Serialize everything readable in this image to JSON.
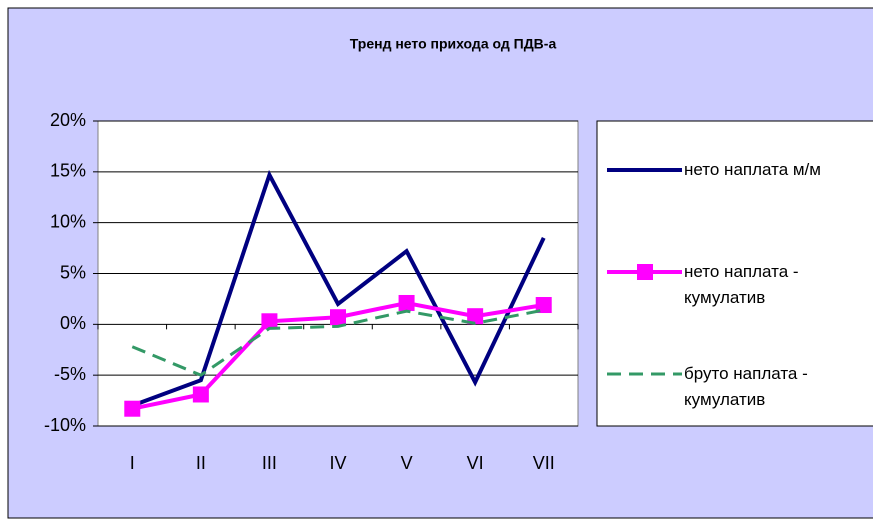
{
  "chart_data": {
    "type": "line",
    "title": "Тренд нето прихода од ПДВ-а",
    "categories": [
      "I",
      "II",
      "III",
      "IV",
      "V",
      "VI",
      "VII"
    ],
    "series": [
      {
        "name": "нето наплата м/м",
        "color": "#000080",
        "values": [
          -8,
          -5.5,
          14.7,
          2,
          7.2,
          -5.7,
          8.5
        ]
      },
      {
        "name": "нето наплата - кумулатив",
        "color": "#ff00ff",
        "marker": "square",
        "values": [
          -8.3,
          -6.9,
          0.3,
          0.7,
          2.1,
          0.8,
          1.9
        ]
      },
      {
        "name": "бруто наплата - кумулатив",
        "color": "#339966",
        "dash": true,
        "values": [
          -2.2,
          -5,
          -0.4,
          -0.2,
          1.3,
          0.1,
          1.4
        ]
      }
    ],
    "ylim": [
      -10,
      20
    ],
    "yticks": [
      {
        "value": -10,
        "label": "-10%"
      },
      {
        "value": -5,
        "label": "-5%"
      },
      {
        "value": 0,
        "label": "0%"
      },
      {
        "value": 5,
        "label": "5%"
      },
      {
        "value": 10,
        "label": "10%"
      },
      {
        "value": 15,
        "label": "15%"
      },
      {
        "value": 20,
        "label": "20%"
      }
    ],
    "grid": true,
    "legend": "right"
  }
}
